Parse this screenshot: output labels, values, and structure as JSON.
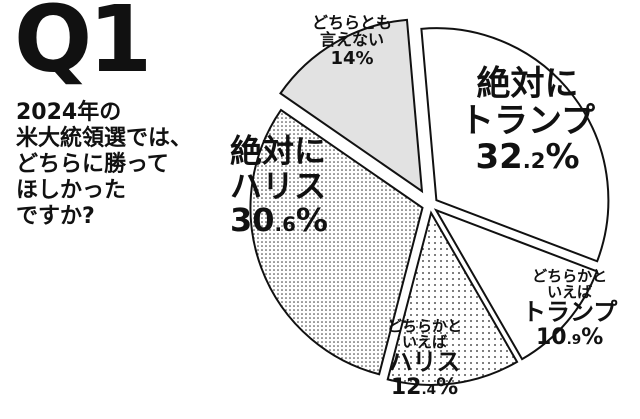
{
  "header": {
    "q": "Q1"
  },
  "question": {
    "lines": [
      "2024年の",
      "米大統領選では、",
      "どちらに勝って",
      "ほしかった",
      "ですか?"
    ]
  },
  "chart_data": {
    "type": "pie",
    "title": "",
    "slices": [
      {
        "label": "絶対にトランプ",
        "value": 32.2,
        "lines": [
          "絶対に",
          "トランプ"
        ],
        "pct_main": "32",
        "pct_dec": ".2",
        "pct_sign": "%"
      },
      {
        "label": "どちらかといえばトランプ",
        "value": 10.9,
        "lines": [
          "どちらかと",
          "いえば",
          "トランプ"
        ],
        "pct_main": "10",
        "pct_dec": ".9",
        "pct_sign": "%"
      },
      {
        "label": "どちらかといえばハリス",
        "value": 12.4,
        "lines": [
          "どちらかと",
          "いえば",
          "ハリス"
        ],
        "pct_main": "12",
        "pct_dec": ".4",
        "pct_sign": "%"
      },
      {
        "label": "絶対にハリス",
        "value": 30.6,
        "lines": [
          "絶対に",
          "ハリス"
        ],
        "pct_main": "30",
        "pct_dec": ".6",
        "pct_sign": "%"
      },
      {
        "label": "どちらとも言えない",
        "value": 14,
        "lines": [
          "どちらとも",
          "言えない"
        ],
        "pct_main": "14",
        "pct_dec": "",
        "pct_sign": "%"
      }
    ],
    "fills": [
      "#ffffff",
      "#ffffff",
      "#f2f2f2",
      "#e9e9e9",
      "#e2e2e2"
    ],
    "patterns": [
      "none",
      "none",
      "dots-sparse",
      "dots-dense",
      "none"
    ]
  }
}
